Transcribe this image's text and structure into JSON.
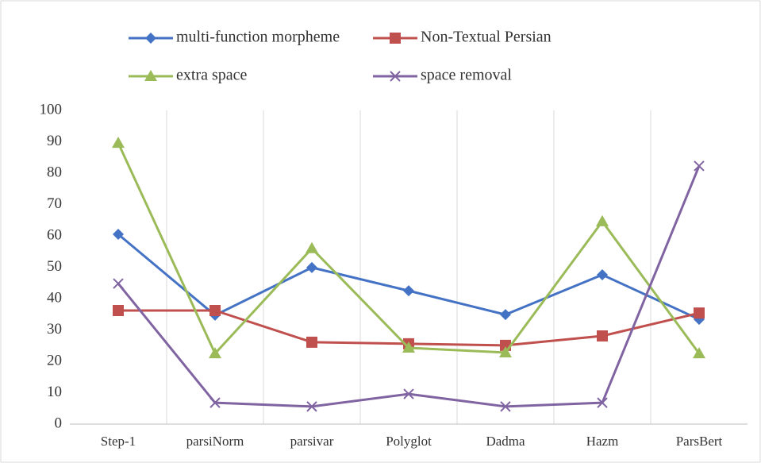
{
  "chart_data": {
    "type": "line",
    "categories": [
      "Step-1",
      "parsiNorm",
      "parsivar",
      "Polyglot",
      "Dadma",
      "Hazm",
      "ParsBert"
    ],
    "series": [
      {
        "name": "multi-function morpheme",
        "color": "#4472c4",
        "marker": "diamond",
        "values": [
          60.5,
          34.7,
          49.9,
          42.5,
          34.9,
          47.6,
          33.4
        ]
      },
      {
        "name": "Non-Textual Persian",
        "color": "#c0504d",
        "marker": "square",
        "values": [
          36.2,
          36.2,
          26.1,
          25.6,
          25.1,
          28.1,
          35.4
        ]
      },
      {
        "name": "extra space",
        "color": "#9bbb59",
        "marker": "triangle",
        "values": [
          89.6,
          22.5,
          56,
          24.3,
          22.8,
          64.6,
          22.5
        ]
      },
      {
        "name": "space removal",
        "color": "#8064a2",
        "marker": "x",
        "values": [
          44.8,
          6.8,
          5.6,
          9.6,
          5.6,
          6.8,
          82.3
        ]
      }
    ],
    "ylim": [
      0,
      100
    ],
    "yticks": [
      0,
      10,
      20,
      30,
      40,
      50,
      60,
      70,
      80,
      90,
      100
    ],
    "grid": true,
    "legend": "top"
  }
}
